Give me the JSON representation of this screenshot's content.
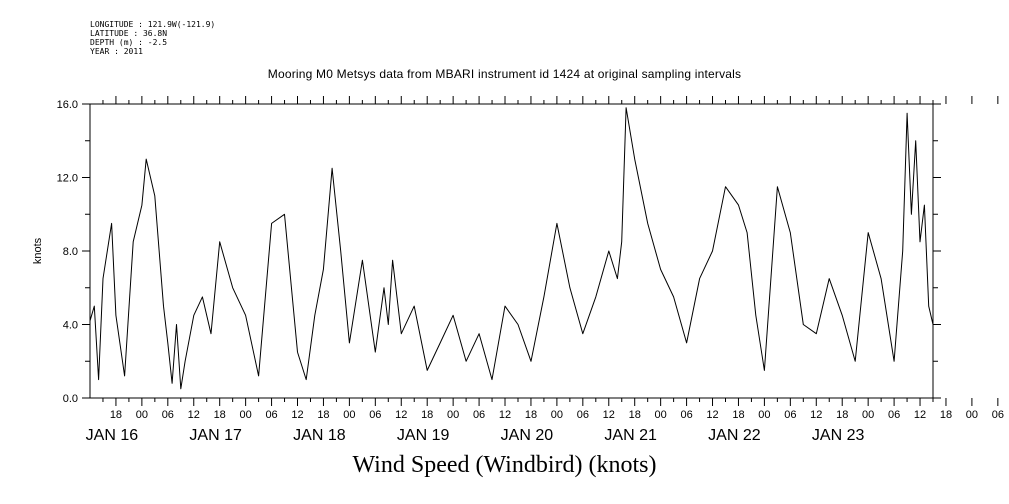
{
  "header": {
    "lines": [
      "LONGITUDE : 121.9W(-121.9)",
      "LATITUDE : 36.8N",
      "DEPTH (m) : -2.5",
      "YEAR : 2011"
    ]
  },
  "chart_data": {
    "type": "line",
    "title": "Mooring M0 Metsys data from MBARI instrument id 1424 at original sampling intervals",
    "xlabel": "Wind Speed (Windbird) (knots)",
    "ylabel": "knots",
    "ylim": [
      0,
      16
    ],
    "yticks": [
      "0.0",
      "4.0",
      "8.0",
      "12.0",
      "16.0"
    ],
    "xlim": [
      "2011-01-15T12:00",
      "2011-01-23T15:00"
    ],
    "hour_ticks": [
      "18",
      "00",
      "06",
      "12",
      "18",
      "00",
      "06",
      "12",
      "18",
      "00",
      "06",
      "12",
      "18",
      "00",
      "06",
      "12",
      "18",
      "00",
      "06",
      "12",
      "18",
      "00",
      "06",
      "12",
      "18",
      "00",
      "06",
      "12",
      "18",
      "00",
      "06",
      "12",
      "18",
      "00",
      "06",
      "12"
    ],
    "day_labels": [
      "JAN 16",
      "JAN 17",
      "JAN 18",
      "JAN 19",
      "JAN 20",
      "JAN 21",
      "JAN 22",
      "JAN 23"
    ],
    "grid": false,
    "series": [
      {
        "color": "#000000",
        "x": [
          "2011-01-15T12:00",
          "2011-01-15T13:00",
          "2011-01-15T14:00",
          "2011-01-15T15:00",
          "2011-01-15T17:00",
          "2011-01-15T18:00",
          "2011-01-15T20:00",
          "2011-01-15T22:00",
          "2011-01-16T00:00",
          "2011-01-16T01:00",
          "2011-01-16T03:00",
          "2011-01-16T05:00",
          "2011-01-16T06:00",
          "2011-01-16T07:00",
          "2011-01-16T08:00",
          "2011-01-16T09:00",
          "2011-01-16T10:00",
          "2011-01-16T12:00",
          "2011-01-16T14:00",
          "2011-01-16T16:00",
          "2011-01-16T18:00",
          "2011-01-16T21:00",
          "2011-01-17T00:00",
          "2011-01-17T03:00",
          "2011-01-17T06:00",
          "2011-01-17T09:00",
          "2011-01-17T12:00",
          "2011-01-17T14:00",
          "2011-01-17T16:00",
          "2011-01-17T18:00",
          "2011-01-17T20:00",
          "2011-01-17T22:00",
          "2011-01-18T00:00",
          "2011-01-18T03:00",
          "2011-01-18T06:00",
          "2011-01-18T08:00",
          "2011-01-18T09:00",
          "2011-01-18T10:00",
          "2011-01-18T12:00",
          "2011-01-18T15:00",
          "2011-01-18T18:00",
          "2011-01-18T21:00",
          "2011-01-19T00:00",
          "2011-01-19T03:00",
          "2011-01-19T06:00",
          "2011-01-19T09:00",
          "2011-01-19T12:00",
          "2011-01-19T15:00",
          "2011-01-19T18:00",
          "2011-01-19T21:00",
          "2011-01-20T00:00",
          "2011-01-20T03:00",
          "2011-01-20T06:00",
          "2011-01-20T09:00",
          "2011-01-20T12:00",
          "2011-01-20T14:00",
          "2011-01-20T15:00",
          "2011-01-20T16:00",
          "2011-01-20T18:00",
          "2011-01-20T21:00",
          "2011-01-21T00:00",
          "2011-01-21T03:00",
          "2011-01-21T06:00",
          "2011-01-21T09:00",
          "2011-01-21T12:00",
          "2011-01-21T15:00",
          "2011-01-21T18:00",
          "2011-01-21T20:00",
          "2011-01-21T22:00",
          "2011-01-22T00:00",
          "2011-01-22T03:00",
          "2011-01-22T06:00",
          "2011-01-22T09:00",
          "2011-01-22T12:00",
          "2011-01-22T15:00",
          "2011-01-22T18:00",
          "2011-01-22T21:00",
          "2011-01-23T00:00",
          "2011-01-23T03:00",
          "2011-01-23T06:00",
          "2011-01-23T08:00",
          "2011-01-23T09:00",
          "2011-01-23T10:00",
          "2011-01-23T11:00",
          "2011-01-23T12:00",
          "2011-01-23T13:00",
          "2011-01-23T14:00",
          "2011-01-23T15:00"
        ],
        "y": [
          4.2,
          5.0,
          1.0,
          6.5,
          9.5,
          4.5,
          1.2,
          8.5,
          10.5,
          13.0,
          11.0,
          5.0,
          3.0,
          0.8,
          4.0,
          0.5,
          2.0,
          4.5,
          5.5,
          3.5,
          8.5,
          6.0,
          4.5,
          1.2,
          9.5,
          10.0,
          2.5,
          1.0,
          4.5,
          7.0,
          12.5,
          8.0,
          3.0,
          7.5,
          2.5,
          6.0,
          4.0,
          7.5,
          3.5,
          5.0,
          1.5,
          3.0,
          4.5,
          2.0,
          3.5,
          1.0,
          5.0,
          4.0,
          2.0,
          5.5,
          9.5,
          6.0,
          3.5,
          5.5,
          8.0,
          6.5,
          8.5,
          15.8,
          13.0,
          9.5,
          7.0,
          5.5,
          3.0,
          6.5,
          8.0,
          11.5,
          10.5,
          9.0,
          4.5,
          1.5,
          11.5,
          9.0,
          4.0,
          3.5,
          6.5,
          4.5,
          2.0,
          9.0,
          6.5,
          2.0,
          8.0,
          15.5,
          10.0,
          14.0,
          8.5,
          10.5,
          5.0,
          4.0
        ]
      }
    ]
  }
}
